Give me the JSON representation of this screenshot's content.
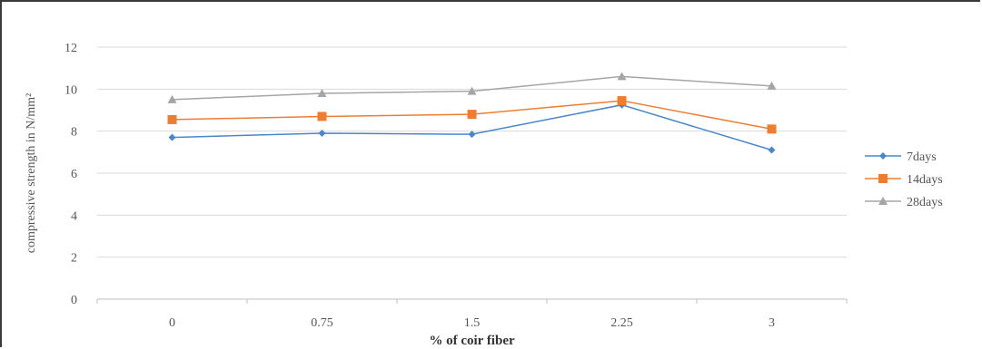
{
  "chart_data": {
    "type": "line",
    "categories": [
      "0",
      "0.75",
      "1.5",
      "2.25",
      "3"
    ],
    "series": [
      {
        "name": "7days",
        "values": [
          7.7,
          7.9,
          7.85,
          9.25,
          7.1
        ],
        "color": "#4a86c8",
        "marker": "diamond"
      },
      {
        "name": "14days",
        "values": [
          8.55,
          8.7,
          8.8,
          9.45,
          8.1
        ],
        "color": "#ed7d31",
        "marker": "square"
      },
      {
        "name": "28days",
        "values": [
          9.5,
          9.8,
          9.9,
          10.6,
          10.15
        ],
        "color": "#a5a5a5",
        "marker": "triangle"
      }
    ],
    "xlabel": "% of coir fiber",
    "ylabel": "compressive strength in N/mm²",
    "ylim": [
      0,
      12
    ],
    "yticks": [
      "0",
      "2",
      "4",
      "6",
      "8",
      "10",
      "12"
    ],
    "grid": true,
    "legend_position": "right"
  }
}
